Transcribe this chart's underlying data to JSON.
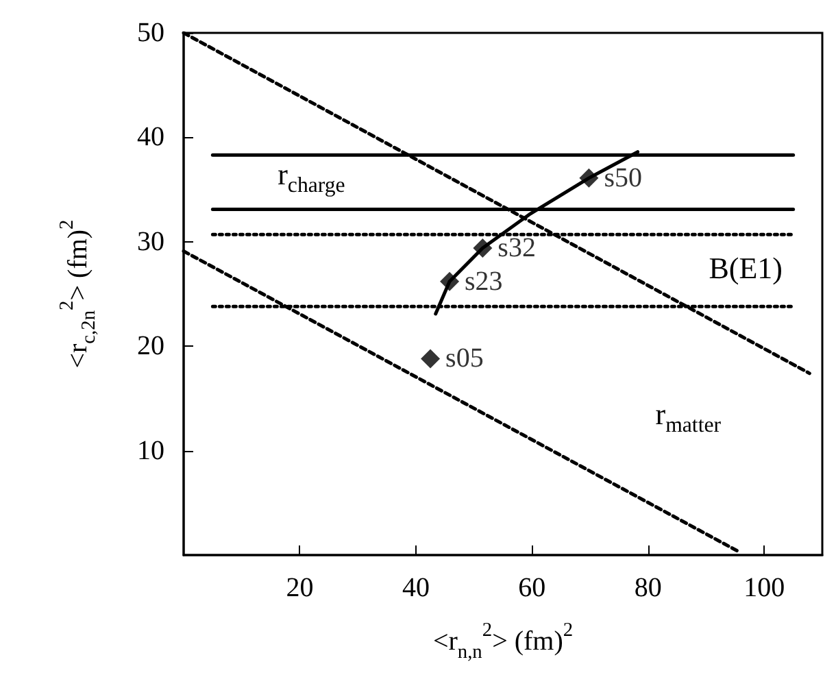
{
  "chart_data": {
    "type": "line",
    "xlabel": "<r$_{n,n}$$^{2}$> (fm)$^{2}$",
    "ylabel": "<r$_{c,2n}$$^{2}$> (fm)$^{2}$",
    "xlim": [
      0,
      110
    ],
    "ylim": [
      0,
      50
    ],
    "xticks": [
      20,
      40,
      60,
      80,
      100
    ],
    "yticks": [
      10,
      20,
      30,
      40,
      50
    ],
    "grid": false,
    "annotations": [
      "r$_{charge}$",
      "B(E1)",
      "r$_{matter}$"
    ],
    "series": [
      {
        "x": [
          5,
          105
        ],
        "values": [
          38.3,
          38.3
        ],
        "color": "#000000",
        "line_style": "solid",
        "marker": "none"
      },
      {
        "x": [
          5,
          105
        ],
        "values": [
          33.1,
          33.1
        ],
        "color": "#000000",
        "line_style": "solid",
        "marker": "none"
      },
      {
        "x": [
          5,
          105
        ],
        "values": [
          30.7,
          30.7
        ],
        "color": "#000000",
        "line_style": "dotted",
        "marker": "none"
      },
      {
        "x": [
          5,
          105
        ],
        "values": [
          23.8,
          23.8
        ],
        "color": "#000000",
        "line_style": "dotted",
        "marker": "none"
      },
      {
        "x": [
          0,
          107.8
        ],
        "values": [
          50,
          17.4
        ],
        "color": "#000000",
        "line_style": "dashed",
        "marker": "none"
      },
      {
        "x": [
          0,
          95.7
        ],
        "values": [
          29.1,
          0.3
        ],
        "color": "#000000",
        "line_style": "dashed",
        "marker": "none"
      },
      {
        "x": [
          43.4,
          45.8,
          51.5,
          59.5,
          69.8,
          78.2
        ],
        "values": [
          23.1,
          26.2,
          29.4,
          32.6,
          36.1,
          38.6
        ],
        "color": "#000000",
        "line_style": "solid",
        "marker": "none"
      },
      {
        "type": "scatter",
        "x": [
          42.5,
          45.8,
          51.5,
          69.8
        ],
        "values": [
          18.8,
          26.2,
          29.4,
          36.1
        ],
        "color": "#000000",
        "marker": "diamond",
        "value_labels": [
          "s05",
          "s23",
          "s32",
          "s50"
        ]
      }
    ]
  }
}
